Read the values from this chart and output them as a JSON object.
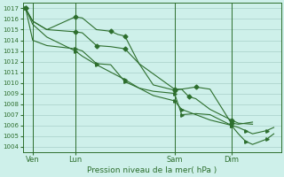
{
  "bg_color": "#cef0ea",
  "grid_color": "#9ec8c0",
  "line_color": "#2d6e2d",
  "xlabel": "Pression niveau de la mer( hPa )",
  "xlabel_color": "#2d6e2d",
  "tick_color": "#2d6e2d",
  "ylim": [
    1003.5,
    1017.5
  ],
  "yticks": [
    1004,
    1005,
    1006,
    1007,
    1008,
    1009,
    1010,
    1011,
    1012,
    1013,
    1014,
    1015,
    1016,
    1017
  ],
  "day_labels": [
    "Ven",
    "Lun",
    "Sam",
    "Dim"
  ],
  "day_positions": [
    0.5,
    3.5,
    10.5,
    14.5
  ],
  "vline_positions": [
    0.5,
    3.5,
    10.5,
    14.5
  ],
  "xlim": [
    -0.2,
    18.0
  ],
  "line1_x": [
    0,
    0.5,
    1.5,
    3.5,
    4,
    5,
    6,
    6.5,
    7,
    8,
    10.5,
    11,
    11.5,
    12,
    13,
    14.5,
    15,
    16
  ],
  "line1_y": [
    1017.0,
    1015.8,
    1015.0,
    1016.2,
    1016.1,
    1015.0,
    1014.85,
    1014.55,
    1014.4,
    1011.8,
    1009.4,
    1009.4,
    1008.7,
    1008.5,
    1007.5,
    1006.5,
    1006.2,
    1006.1
  ],
  "line2_x": [
    0,
    0.5,
    1.5,
    3.5,
    4,
    5,
    6,
    7,
    8,
    9,
    10.5,
    11,
    12,
    13,
    14.5,
    15,
    16
  ],
  "line2_y": [
    1017.0,
    1015.8,
    1015.0,
    1014.8,
    1014.7,
    1013.5,
    1013.4,
    1013.2,
    1011.8,
    1009.8,
    1009.3,
    1009.4,
    1009.6,
    1009.4,
    1006.2,
    1006.1,
    1006.3
  ],
  "line3_x": [
    0,
    0.5,
    1.5,
    3.5,
    4,
    5,
    6,
    7,
    8,
    9,
    10.5,
    11,
    12,
    13,
    14.5,
    15,
    15.5,
    16,
    17,
    17.5
  ],
  "line3_y": [
    1017.0,
    1014.0,
    1013.5,
    1013.2,
    1013.0,
    1011.8,
    1011.7,
    1010.1,
    1009.5,
    1009.2,
    1009.0,
    1007.0,
    1007.1,
    1007.0,
    1006.0,
    1005.8,
    1005.5,
    1005.2,
    1005.5,
    1005.8
  ],
  "line4_x": [
    0,
    0.5,
    1.5,
    3.5,
    4,
    5,
    6,
    7,
    8,
    9,
    10.5,
    11,
    12,
    13,
    14.5,
    15,
    15.5,
    16,
    17,
    17.5
  ],
  "line4_y": [
    1017.0,
    1015.5,
    1014.3,
    1013.0,
    1012.5,
    1011.7,
    1011.0,
    1010.3,
    1009.5,
    1008.8,
    1008.3,
    1007.5,
    1007.0,
    1006.5,
    1006.0,
    1005.2,
    1004.5,
    1004.2,
    1004.7,
    1005.2
  ],
  "markers1": {
    "x": [
      0,
      3.5,
      6,
      7,
      10.5,
      11.5,
      14.5
    ],
    "y": [
      1017.0,
      1016.2,
      1014.85,
      1014.4,
      1009.4,
      1008.7,
      1006.5
    ]
  },
  "markers2": {
    "x": [
      0,
      3.5,
      5,
      7,
      10.5,
      12,
      14.5
    ],
    "y": [
      1017.0,
      1014.8,
      1013.5,
      1013.2,
      1009.3,
      1009.6,
      1006.2
    ]
  },
  "markers3": {
    "x": [
      0,
      3.5,
      5,
      7,
      10.5,
      11,
      14.5,
      15.5,
      17
    ],
    "y": [
      1017.0,
      1013.2,
      1011.8,
      1010.1,
      1009.0,
      1007.0,
      1006.0,
      1005.5,
      1005.5
    ]
  },
  "markers4": {
    "x": [
      0,
      3.5,
      5,
      7,
      10.5,
      11,
      14.5,
      15.5,
      17
    ],
    "y": [
      1017.0,
      1013.0,
      1011.7,
      1010.3,
      1008.3,
      1007.5,
      1006.0,
      1004.5,
      1004.7
    ]
  }
}
